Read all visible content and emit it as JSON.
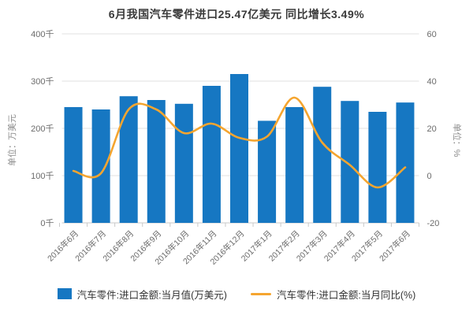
{
  "title": "6月我国汽车零件进口25.47亿美元 同比增长3.49%",
  "colors": {
    "bar": "#1677c2",
    "line": "#f5a52f",
    "grid": "#e2e2e2",
    "axis_line": "#c9c9c9",
    "tick_label": "#6b6b6b",
    "axis_title": "#8c8c8c",
    "title_text": "#3a3a3a",
    "legend_text": "#333333"
  },
  "chart_data": {
    "type": "bar",
    "subtype": "bar-and-line-dual-axis",
    "title": "6月我国汽车零件进口25.47亿美元 同比增长3.49%",
    "categories": [
      "2016年6月",
      "2016年7月",
      "2016年8月",
      "2016年9月",
      "2016年10月",
      "2016年11月",
      "2016年12月",
      "2017年1月",
      "2017年2月",
      "2017年3月",
      "2017年4月",
      "2017年5月",
      "2017年6月"
    ],
    "series": [
      {
        "name": "汽车零件:进口金额:当月值(万美元)",
        "type": "bar",
        "axis": "left",
        "values": [
          245,
          240,
          268,
          260,
          252,
          290,
          315,
          216,
          245,
          288,
          258,
          235,
          254.7
        ]
      },
      {
        "name": "汽车零件:进口金额:当月同比(%)",
        "type": "line",
        "axis": "right",
        "values": [
          2,
          1,
          28,
          28,
          18,
          22,
          16,
          16.5,
          33,
          14,
          4.5,
          -5,
          3.49
        ]
      }
    ],
    "left_axis": {
      "title": "单位：万美元",
      "tick_labels": [
        "400千",
        "300千",
        "200千",
        "100千",
        "0千"
      ],
      "min": 0,
      "max": 400
    },
    "right_axis": {
      "title": "单位：%",
      "tick_labels": [
        "60",
        "40",
        "20",
        "0",
        "-20"
      ],
      "min": -20,
      "max": 60
    },
    "grid": true,
    "legend_position": "bottom"
  },
  "legend": {
    "items": [
      {
        "label": "汽车零件:进口金额:当月值(万美元)",
        "swatch": "bar"
      },
      {
        "label": "汽车零件:进口金额:当月同比(%)",
        "swatch": "line"
      }
    ]
  }
}
